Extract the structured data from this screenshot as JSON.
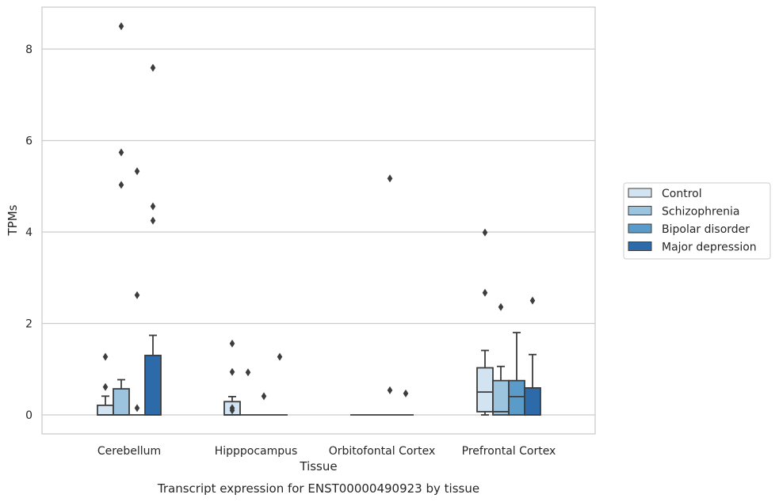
{
  "chart_data": {
    "type": "box",
    "caption": "Transcript expression for ENST00000490923 by tissue",
    "xlabel": "Tissue",
    "ylabel": "TPMs",
    "ylim": [
      -0.42,
      8.95
    ],
    "yticks": [
      0,
      2,
      4,
      6,
      8
    ],
    "grid": "horizontal",
    "legend_position": "right",
    "categories": [
      "Cerebellum",
      "Hipppocampus",
      "Orbitofontal Cortex",
      "Prefrontal Cortex"
    ],
    "series": [
      {
        "name": "Control",
        "color": "#d2e3f1",
        "boxes": [
          {
            "q1": 0.0,
            "median": 0.0,
            "q3": 0.21,
            "whislo": 0.0,
            "whishi": 0.41,
            "fliers": [
              1.27,
              0.61
            ]
          },
          {
            "q1": 0.0,
            "median": 0.0,
            "q3": 0.29,
            "whislo": 0.0,
            "whishi": 0.4,
            "fliers": [
              1.56,
              0.94,
              0.15,
              0.1
            ]
          },
          {
            "q1": 0.0,
            "median": 0.0,
            "q3": 0.0,
            "whislo": 0.0,
            "whishi": 0.0,
            "fliers": []
          },
          {
            "q1": 0.07,
            "median": 0.5,
            "q3": 1.03,
            "whislo": 0.0,
            "whishi": 1.41,
            "fliers": [
              3.99,
              2.67
            ]
          }
        ]
      },
      {
        "name": "Schizophrenia",
        "color": "#9dc4df",
        "boxes": [
          {
            "q1": 0.0,
            "median": 0.0,
            "q3": 0.57,
            "whislo": 0.0,
            "whishi": 0.77,
            "fliers": [
              8.5,
              5.74,
              5.03
            ]
          },
          {
            "q1": 0.0,
            "median": 0.0,
            "q3": 0.0,
            "whislo": 0.0,
            "whishi": 0.0,
            "fliers": [
              0.93
            ]
          },
          {
            "q1": 0.0,
            "median": 0.0,
            "q3": 0.0,
            "whislo": 0.0,
            "whishi": 0.0,
            "fliers": []
          },
          {
            "q1": 0.0,
            "median": 0.07,
            "q3": 0.75,
            "whislo": 0.0,
            "whishi": 1.06,
            "fliers": [
              2.36
            ]
          }
        ]
      },
      {
        "name": "Bipolar disorder",
        "color": "#5a9bc9",
        "boxes": [
          {
            "q1": 0.0,
            "median": 0.0,
            "q3": 0.0,
            "whislo": 0.0,
            "whishi": 0.0,
            "fliers": [
              5.33,
              2.62,
              0.15
            ]
          },
          {
            "q1": 0.0,
            "median": 0.0,
            "q3": 0.0,
            "whislo": 0.0,
            "whishi": 0.0,
            "fliers": [
              0.41
            ]
          },
          {
            "q1": 0.0,
            "median": 0.0,
            "q3": 0.0,
            "whislo": 0.0,
            "whishi": 0.0,
            "fliers": [
              5.17,
              0.54
            ]
          },
          {
            "q1": 0.0,
            "median": 0.4,
            "q3": 0.75,
            "whislo": 0.0,
            "whishi": 1.8,
            "fliers": []
          }
        ]
      },
      {
        "name": "Major depression",
        "color": "#2d6aa9",
        "boxes": [
          {
            "q1": 0.0,
            "median": 0.0,
            "q3": 1.3,
            "whislo": 0.0,
            "whishi": 1.74,
            "fliers": [
              7.59,
              4.56,
              4.25
            ]
          },
          {
            "q1": 0.0,
            "median": 0.0,
            "q3": 0.0,
            "whislo": 0.0,
            "whishi": 0.0,
            "fliers": [
              1.27
            ]
          },
          {
            "q1": 0.0,
            "median": 0.0,
            "q3": 0.0,
            "whislo": 0.0,
            "whishi": 0.0,
            "fliers": [
              0.47
            ]
          },
          {
            "q1": 0.0,
            "median": 0.0,
            "q3": 0.59,
            "whislo": 0.0,
            "whishi": 1.32,
            "fliers": [
              2.5
            ]
          }
        ]
      }
    ]
  }
}
